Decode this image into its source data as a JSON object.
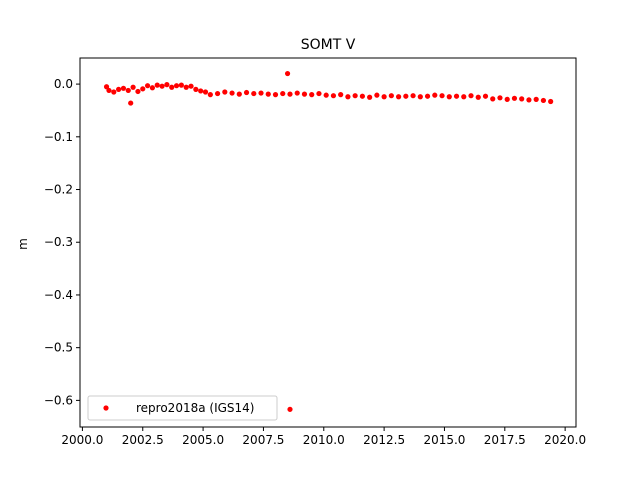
{
  "chart_data": {
    "type": "scatter",
    "title": "SOMT V",
    "xlabel": "",
    "ylabel": "m",
    "xlim": [
      1999.9,
      2020.45
    ],
    "ylim": [
      -0.6505,
      0.0495
    ],
    "x_ticks": [
      2000.0,
      2002.5,
      2005.0,
      2007.5,
      2010.0,
      2012.5,
      2015.0,
      2017.5,
      2020.0
    ],
    "x_tick_labels": [
      "2000.0",
      "2002.5",
      "2005.0",
      "2007.5",
      "2010.0",
      "2012.5",
      "2015.0",
      "2017.5",
      "2020.0"
    ],
    "y_ticks": [
      0.0,
      -0.1,
      -0.2,
      -0.3,
      -0.4,
      -0.5,
      -0.6
    ],
    "y_tick_labels": [
      "0.0",
      "−0.1",
      "−0.2",
      "−0.3",
      "−0.4",
      "−0.5",
      "−0.6"
    ],
    "grid": false,
    "legend_position": "lower-left",
    "series": [
      {
        "name": "repro2018a (IGS14)",
        "color": "#ff0000",
        "marker": "circle",
        "x": [
          2001.0,
          2001.1,
          2001.3,
          2001.5,
          2001.7,
          2001.9,
          2002.1,
          2002.3,
          2002.5,
          2002.7,
          2002.9,
          2003.1,
          2003.3,
          2003.5,
          2003.7,
          2003.9,
          2004.1,
          2004.3,
          2004.5,
          2004.7,
          2004.9,
          2005.1,
          2005.3,
          2005.6,
          2005.9,
          2006.2,
          2006.5,
          2006.8,
          2007.1,
          2007.4,
          2007.7,
          2008.0,
          2008.3,
          2008.6,
          2008.9,
          2009.2,
          2009.5,
          2009.8,
          2010.1,
          2010.4,
          2010.7,
          2011.0,
          2011.3,
          2011.6,
          2011.9,
          2012.2,
          2012.5,
          2012.8,
          2013.1,
          2013.4,
          2013.7,
          2014.0,
          2014.3,
          2014.6,
          2014.9,
          2015.2,
          2015.5,
          2015.8,
          2016.1,
          2016.4,
          2016.7,
          2017.0,
          2017.3,
          2017.6,
          2017.9,
          2018.2,
          2018.5,
          2018.8,
          2019.1,
          2019.4,
          2002.0,
          2008.5,
          2008.6
        ],
        "y": [
          -0.005,
          -0.012,
          -0.015,
          -0.01,
          -0.008,
          -0.012,
          -0.006,
          -0.014,
          -0.009,
          -0.003,
          -0.007,
          -0.002,
          -0.004,
          -0.001,
          -0.006,
          -0.003,
          -0.002,
          -0.006,
          -0.004,
          -0.01,
          -0.013,
          -0.015,
          -0.02,
          -0.018,
          -0.015,
          -0.017,
          -0.019,
          -0.016,
          -0.018,
          -0.017,
          -0.019,
          -0.02,
          -0.018,
          -0.019,
          -0.017,
          -0.019,
          -0.02,
          -0.018,
          -0.021,
          -0.022,
          -0.02,
          -0.024,
          -0.022,
          -0.023,
          -0.025,
          -0.021,
          -0.024,
          -0.022,
          -0.024,
          -0.023,
          -0.022,
          -0.024,
          -0.023,
          -0.021,
          -0.022,
          -0.024,
          -0.023,
          -0.024,
          -0.022,
          -0.025,
          -0.023,
          -0.028,
          -0.026,
          -0.029,
          -0.027,
          -0.028,
          -0.03,
          -0.029,
          -0.031,
          -0.033,
          -0.036,
          0.02,
          -0.617
        ]
      }
    ]
  }
}
